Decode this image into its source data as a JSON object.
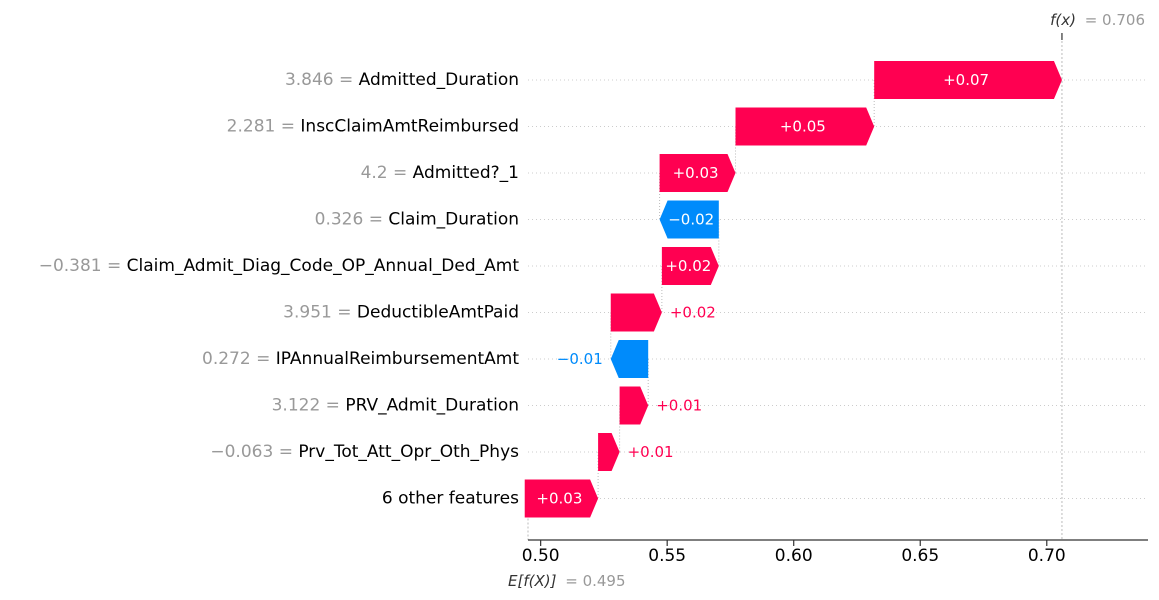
{
  "chart_data": {
    "type": "waterfall",
    "base_value_label": "E[f(X)]",
    "base_value_text": "= 0.495",
    "base_value": 0.495,
    "output_value_label": "f(x)",
    "output_value_text": "= 0.706",
    "output_value": 0.706,
    "xlim": [
      0.495,
      0.74
    ],
    "x_ticks": [
      {
        "value": 0.5,
        "label": "0.50"
      },
      {
        "value": 0.55,
        "label": "0.55"
      },
      {
        "value": 0.6,
        "label": "0.60"
      },
      {
        "value": 0.65,
        "label": "0.65"
      },
      {
        "value": 0.7,
        "label": "0.70"
      }
    ],
    "colors": {
      "positive": "#ff0051",
      "negative": "#008bfb",
      "feature_value": "#999999",
      "grid": "#cccccc"
    },
    "features": [
      {
        "value_text": "3.846 =",
        "name": "Admitted_Duration",
        "contribution": 0.0742,
        "label": "+0.07",
        "label_inside": true
      },
      {
        "value_text": "2.281 =",
        "name": "InscClaimAmtReimbursed",
        "contribution": 0.0548,
        "label": "+0.05",
        "label_inside": true
      },
      {
        "value_text": "4.2 =",
        "name": "Admitted?_1",
        "contribution": 0.03,
        "label": "+0.03",
        "label_inside": true
      },
      {
        "value_text": "0.326 =",
        "name": "Claim_Duration",
        "contribution": -0.0234,
        "label": "−0.02",
        "label_inside": true
      },
      {
        "value_text": "−0.381 =",
        "name": "Claim_Admit_Diag_Code_OP_Annual_Ded_Amt",
        "contribution": 0.0225,
        "label": "+0.02",
        "label_inside": true
      },
      {
        "value_text": "3.951 =",
        "name": "DeductibleAmtPaid",
        "contribution": 0.0202,
        "label": "+0.02",
        "label_inside": false
      },
      {
        "value_text": "0.272 =",
        "name": "IPAnnualReimbursementAmt",
        "contribution": -0.0148,
        "label": "−0.01",
        "label_inside": false
      },
      {
        "value_text": "3.122 =",
        "name": "PRV_Admit_Duration",
        "contribution": 0.0113,
        "label": "+0.01",
        "label_inside": false
      },
      {
        "value_text": "−0.063 =",
        "name": "Prv_Tot_Att_Opr_Oth_Phys",
        "contribution": 0.0085,
        "label": "+0.01",
        "label_inside": false
      },
      {
        "value_text": "",
        "name": "6 other features",
        "contribution": 0.029,
        "label": "+0.03",
        "label_inside": true
      }
    ]
  }
}
